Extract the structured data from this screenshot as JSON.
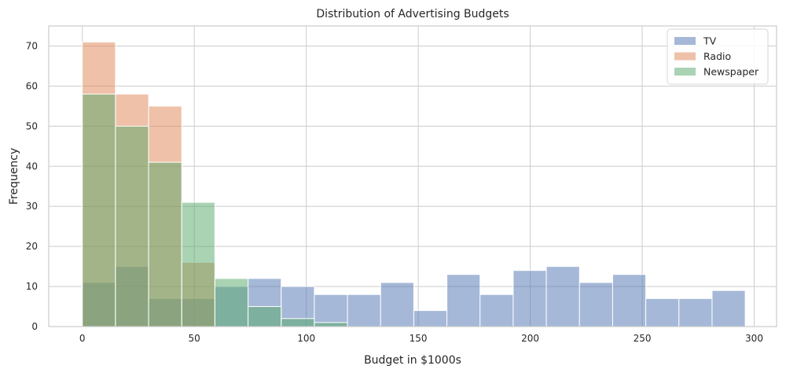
{
  "chart_data": {
    "type": "histogram",
    "title": "Distribution of Advertising Budgets",
    "xlabel": "Budget in $1000s",
    "ylabel": "Frequency",
    "xlim": [
      -15,
      310
    ],
    "ylim": [
      0,
      75
    ],
    "xticks": [
      0,
      50,
      100,
      150,
      200,
      250,
      300
    ],
    "yticks": [
      0,
      10,
      20,
      30,
      40,
      50,
      60,
      70
    ],
    "grid": true,
    "legend_position": "top-right",
    "bin_edges": [
      0,
      14.8,
      29.6,
      44.4,
      59.2,
      74.0,
      88.8,
      103.6,
      118.4,
      133.2,
      148.0,
      162.8,
      177.6,
      192.4,
      207.2,
      222.0,
      236.8,
      251.6,
      266.4,
      281.2,
      296.0
    ],
    "series": [
      {
        "name": "TV",
        "color": "#4c72b0",
        "opacity": 0.5,
        "counts": [
          11,
          15,
          7,
          7,
          10,
          12,
          10,
          8,
          8,
          11,
          4,
          13,
          8,
          14,
          15,
          11,
          13,
          7,
          7,
          9
        ]
      },
      {
        "name": "Radio",
        "color": "#dd8452",
        "opacity": 0.5,
        "counts": [
          71,
          58,
          55,
          16
        ]
      },
      {
        "name": "Newspaper",
        "color": "#55a868",
        "opacity": 0.5,
        "counts": [
          58,
          50,
          41,
          31,
          12,
          5,
          2,
          1
        ]
      }
    ]
  }
}
